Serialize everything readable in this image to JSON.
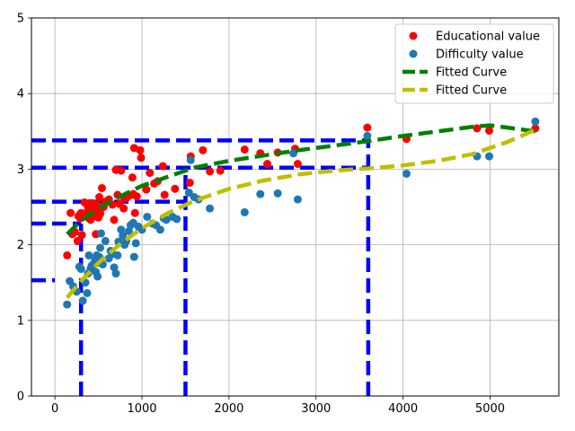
{
  "chart_data": {
    "type": "scatter",
    "title": "",
    "xlabel": "",
    "ylabel": "",
    "xlim": [
      -270,
      5790
    ],
    "ylim": [
      0,
      5
    ],
    "xticks": [
      0,
      1000,
      2000,
      3000,
      4000,
      5000
    ],
    "yticks": [
      0,
      1,
      2,
      3,
      4,
      5
    ],
    "grid": true,
    "legend_position": "top-right",
    "series": [
      {
        "name": "Educational value",
        "kind": "points",
        "color": "#ff0000",
        "points": [
          [
            140,
            1.86
          ],
          [
            180,
            2.42
          ],
          [
            200,
            2.14
          ],
          [
            230,
            2.17
          ],
          [
            260,
            2.05
          ],
          [
            270,
            2.38
          ],
          [
            290,
            2.35
          ],
          [
            300,
            2.42
          ],
          [
            310,
            2.13
          ],
          [
            320,
            2.37
          ],
          [
            340,
            2.56
          ],
          [
            360,
            2.38
          ],
          [
            370,
            2.43
          ],
          [
            380,
            2.5
          ],
          [
            390,
            2.35
          ],
          [
            400,
            2.55
          ],
          [
            410,
            2.33
          ],
          [
            420,
            2.46
          ],
          [
            430,
            2.55
          ],
          [
            440,
            2.41
          ],
          [
            450,
            2.48
          ],
          [
            460,
            2.38
          ],
          [
            470,
            2.14
          ],
          [
            480,
            2.53
          ],
          [
            490,
            2.44
          ],
          [
            500,
            2.36
          ],
          [
            510,
            2.63
          ],
          [
            520,
            2.41
          ],
          [
            530,
            2.48
          ],
          [
            540,
            2.75
          ],
          [
            560,
            2.5
          ],
          [
            580,
            2.57
          ],
          [
            620,
            2.6
          ],
          [
            660,
            2.53
          ],
          [
            680,
            2.33
          ],
          [
            700,
            2.99
          ],
          [
            720,
            2.66
          ],
          [
            740,
            2.54
          ],
          [
            760,
            2.98
          ],
          [
            790,
            2.48
          ],
          [
            800,
            2.61
          ],
          [
            820,
            2.62
          ],
          [
            860,
            2.65
          ],
          [
            890,
            2.89
          ],
          [
            900,
            2.67
          ],
          [
            910,
            3.28
          ],
          [
            920,
            2.42
          ],
          [
            940,
            2.64
          ],
          [
            980,
            3.25
          ],
          [
            990,
            3.15
          ],
          [
            1050,
            2.73
          ],
          [
            1090,
            2.95
          ],
          [
            1140,
            2.81
          ],
          [
            1180,
            2.84
          ],
          [
            1240,
            3.04
          ],
          [
            1260,
            2.66
          ],
          [
            1380,
            2.74
          ],
          [
            1550,
            2.82
          ],
          [
            1560,
            3.17
          ],
          [
            1700,
            3.25
          ],
          [
            1780,
            2.97
          ],
          [
            1900,
            2.98
          ],
          [
            2180,
            3.26
          ],
          [
            2360,
            3.21
          ],
          [
            2440,
            3.07
          ],
          [
            2560,
            3.22
          ],
          [
            2760,
            3.27
          ],
          [
            2790,
            3.07
          ],
          [
            3590,
            3.55
          ],
          [
            4040,
            3.4
          ],
          [
            4850,
            3.54
          ],
          [
            4990,
            3.51
          ],
          [
            5520,
            3.54
          ]
        ]
      },
      {
        "name": "Difficulty value",
        "kind": "points",
        "color": "#1f77b4",
        "points": [
          [
            140,
            1.21
          ],
          [
            170,
            1.52
          ],
          [
            210,
            1.45
          ],
          [
            250,
            1.38
          ],
          [
            280,
            1.71
          ],
          [
            300,
            1.68
          ],
          [
            320,
            1.26
          ],
          [
            350,
            1.5
          ],
          [
            370,
            1.36
          ],
          [
            380,
            1.62
          ],
          [
            390,
            1.86
          ],
          [
            410,
            1.68
          ],
          [
            420,
            1.72
          ],
          [
            440,
            1.74
          ],
          [
            460,
            1.8
          ],
          [
            470,
            1.64
          ],
          [
            480,
            1.86
          ],
          [
            490,
            1.58
          ],
          [
            500,
            1.76
          ],
          [
            510,
            1.84
          ],
          [
            520,
            1.96
          ],
          [
            530,
            2.15
          ],
          [
            550,
            1.74
          ],
          [
            580,
            2.05
          ],
          [
            620,
            1.82
          ],
          [
            640,
            1.92
          ],
          [
            660,
            1.88
          ],
          [
            680,
            1.7
          ],
          [
            700,
            1.62
          ],
          [
            720,
            1.86
          ],
          [
            730,
            2.04
          ],
          [
            760,
            2.2
          ],
          [
            780,
            2.12
          ],
          [
            800,
            2.0
          ],
          [
            820,
            2.05
          ],
          [
            850,
            2.18
          ],
          [
            870,
            2.26
          ],
          [
            900,
            2.29
          ],
          [
            910,
            1.84
          ],
          [
            930,
            2.02
          ],
          [
            960,
            2.24
          ],
          [
            1000,
            2.2
          ],
          [
            1060,
            2.37
          ],
          [
            1120,
            2.28
          ],
          [
            1160,
            2.26
          ],
          [
            1210,
            2.2
          ],
          [
            1250,
            2.35
          ],
          [
            1280,
            2.33
          ],
          [
            1350,
            2.37
          ],
          [
            1400,
            2.34
          ],
          [
            1540,
            2.69
          ],
          [
            1560,
            3.12
          ],
          [
            1600,
            2.63
          ],
          [
            1650,
            2.6
          ],
          [
            1780,
            2.48
          ],
          [
            2180,
            2.43
          ],
          [
            2360,
            2.67
          ],
          [
            2560,
            2.68
          ],
          [
            2790,
            2.6
          ],
          [
            2740,
            3.21
          ],
          [
            3590,
            3.44
          ],
          [
            4040,
            2.94
          ],
          [
            4850,
            3.17
          ],
          [
            4990,
            3.17
          ],
          [
            5520,
            3.63
          ]
        ]
      },
      {
        "name": "Fitted Curve",
        "kind": "line",
        "color": "#008000",
        "points": [
          [
            140,
            2.14
          ],
          [
            300,
            2.32
          ],
          [
            500,
            2.48
          ],
          [
            750,
            2.64
          ],
          [
            1000,
            2.78
          ],
          [
            1300,
            2.9
          ],
          [
            1600,
            3.02
          ],
          [
            2000,
            3.11
          ],
          [
            2400,
            3.18
          ],
          [
            2800,
            3.25
          ],
          [
            3200,
            3.31
          ],
          [
            3600,
            3.37
          ],
          [
            4000,
            3.44
          ],
          [
            4400,
            3.5
          ],
          [
            4800,
            3.56
          ],
          [
            5000,
            3.58
          ],
          [
            5200,
            3.55
          ],
          [
            5520,
            3.5
          ]
        ]
      },
      {
        "name": "Fitted Curve",
        "kind": "line",
        "color": "#bfbf00",
        "points": [
          [
            140,
            1.3
          ],
          [
            300,
            1.52
          ],
          [
            500,
            1.76
          ],
          [
            750,
            2.01
          ],
          [
            1000,
            2.22
          ],
          [
            1300,
            2.42
          ],
          [
            1600,
            2.58
          ],
          [
            2000,
            2.74
          ],
          [
            2400,
            2.85
          ],
          [
            2800,
            2.93
          ],
          [
            3200,
            2.98
          ],
          [
            3600,
            3.01
          ],
          [
            4000,
            3.05
          ],
          [
            4400,
            3.11
          ],
          [
            4800,
            3.2
          ],
          [
            5000,
            3.28
          ],
          [
            5200,
            3.36
          ],
          [
            5520,
            3.52
          ]
        ]
      }
    ],
    "reference_lines": {
      "color": "#0000ff",
      "horizontal": [
        {
          "y": 1.53,
          "x_end": 0
        },
        {
          "y": 2.28,
          "x_end": 300
        },
        {
          "y": 2.57,
          "x_end": 1500
        },
        {
          "y": 3.02,
          "x_end": 3600
        },
        {
          "y": 3.38,
          "x_end": 3600
        }
      ],
      "vertical": [
        {
          "x": 300,
          "y_end": 2.28
        },
        {
          "x": 1500,
          "y_end": 3.02
        },
        {
          "x": 3600,
          "y_end": 3.38
        }
      ]
    }
  }
}
